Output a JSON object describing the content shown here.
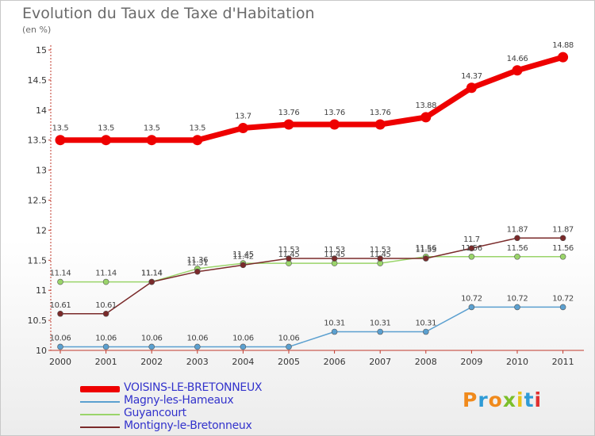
{
  "header": {
    "title": "Evolution du Taux de Taxe d'Habitation",
    "subtitle": "(en %)"
  },
  "logo": {
    "text": "Proxiti",
    "colors": [
      "#f08a1c",
      "#2f9bd6",
      "#f08a1c",
      "#7cbf2a",
      "#e8c21a",
      "#2f9bd6",
      "#e03030"
    ]
  },
  "chart_data": {
    "type": "line",
    "title": "Evolution du Taux de Taxe d'Habitation",
    "subtitle": "(en %)",
    "xlabel": "",
    "ylabel": "",
    "categories": [
      "2000",
      "2001",
      "2002",
      "2003",
      "2004",
      "2005",
      "2006",
      "2007",
      "2008",
      "2009",
      "2010",
      "2011"
    ],
    "ylim": [
      10,
      15
    ],
    "yticks": [
      "10",
      "10.5",
      "11",
      "11.5",
      "12",
      "12.5",
      "13",
      "13.5",
      "14",
      "14.5",
      "15"
    ],
    "grid": false,
    "legend_position": "bottom-left",
    "series": [
      {
        "name": "VOISINS-LE-BRETONNEUX",
        "color": "#ee0000",
        "values": [
          13.5,
          13.5,
          13.5,
          13.5,
          13.7,
          13.76,
          13.76,
          13.76,
          13.88,
          14.37,
          14.66,
          14.88
        ],
        "labels": [
          "13.5",
          "13.5",
          "13.5",
          "13.5",
          "13.7",
          "13.76",
          "13.76",
          "13.76",
          "13.88",
          "14.37",
          "14.66",
          "14.88"
        ]
      },
      {
        "name": "Magny-les-Hameaux",
        "color": "#5ba0d0",
        "values": [
          10.06,
          10.06,
          10.06,
          10.06,
          10.06,
          10.06,
          10.31,
          10.31,
          10.31,
          10.72,
          10.72,
          10.72
        ],
        "labels": [
          "10.06",
          "10.06",
          "10.06",
          "10.06",
          "10.06",
          "10.06",
          "10.31",
          "10.31",
          "10.31",
          "10.72",
          "10.72",
          "10.72"
        ]
      },
      {
        "name": "Guyancourt",
        "color": "#9ad46a",
        "values": [
          11.14,
          11.14,
          11.14,
          11.36,
          11.45,
          11.45,
          11.45,
          11.45,
          11.56,
          11.56,
          11.56,
          11.56
        ],
        "labels": [
          "11.14",
          "11.14",
          "11.14",
          "11.36",
          "11.45",
          "11.45",
          "11.45",
          "11.45",
          "11.56",
          "11.56",
          "11.56",
          "11.56"
        ]
      },
      {
        "name": "Montigny-le-Bretonneux",
        "color": "#7a2a2a",
        "values": [
          10.61,
          10.61,
          11.14,
          11.31,
          11.42,
          11.53,
          11.53,
          11.53,
          11.53,
          11.7,
          11.87,
          11.87
        ],
        "labels": [
          "10.61",
          "10.61",
          "11.14",
          "11.31",
          "11.42",
          "11.53",
          "11.53",
          "11.53",
          "11.53",
          "11.7",
          "11.87",
          "11.87"
        ]
      }
    ]
  }
}
